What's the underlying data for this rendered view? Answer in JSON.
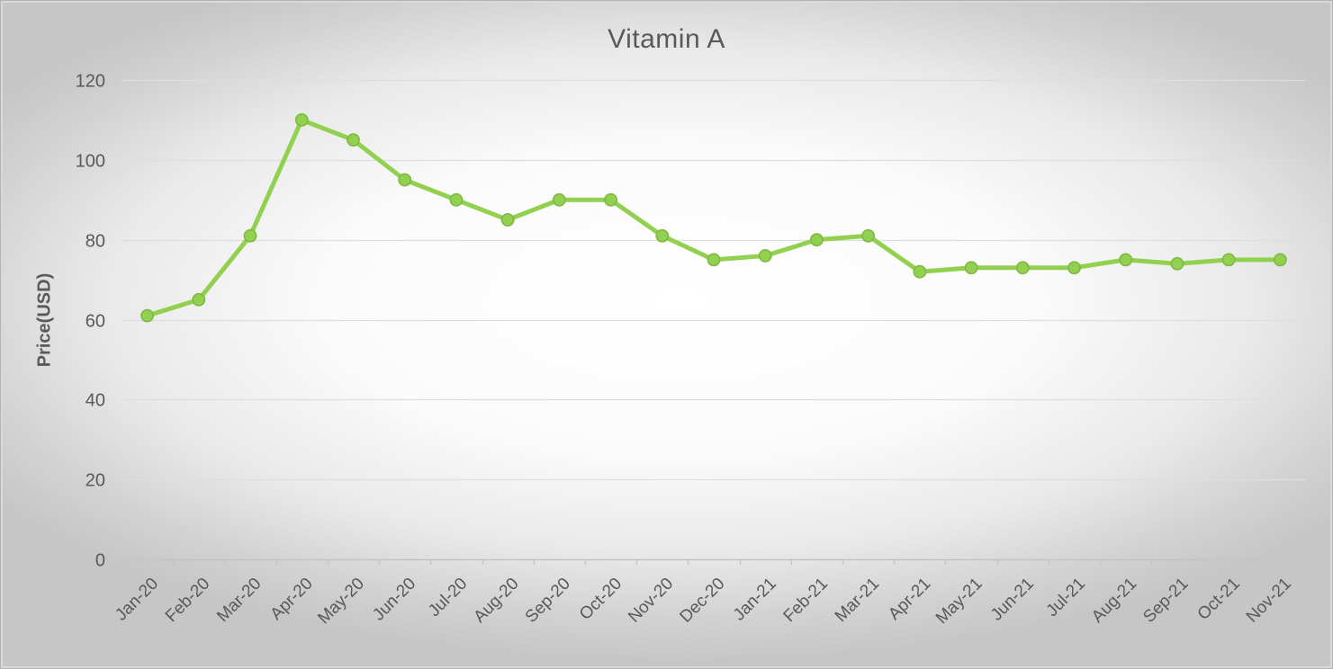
{
  "chart_data": {
    "type": "line",
    "title": "Vitamin A",
    "xlabel": "",
    "ylabel": "Price(USD)",
    "categories": [
      "Jan-20",
      "Feb-20",
      "Mar-20",
      "Apr-20",
      "May-20",
      "Jun-20",
      "Jul-20",
      "Aug-20",
      "Sep-20",
      "Oct-20",
      "Nov-20",
      "Dec-20",
      "Jan-21",
      "Feb-21",
      "Mar-21",
      "Apr-21",
      "May-21",
      "Jun-21",
      "Jul-21",
      "Aug-21",
      "Sep-21",
      "Oct-21",
      "Nov-21"
    ],
    "series": [
      {
        "name": "Vitamin A",
        "values": [
          61,
          65,
          81,
          110,
          105,
          95,
          90,
          85,
          90,
          90,
          81,
          75,
          76,
          80,
          81,
          72,
          73,
          73,
          73,
          75,
          74,
          75,
          75
        ]
      }
    ],
    "ylim": [
      0,
      120
    ],
    "yticks": [
      0,
      20,
      40,
      60,
      80,
      100,
      120
    ],
    "grid": "horizontal",
    "legend": "none",
    "marker": "circle",
    "x_label_rotation_deg": -45,
    "style": {
      "line_color": "#92d050",
      "marker_fill": "#92d050",
      "marker_stroke": "#7fb843",
      "text_color": "#595959",
      "gridline_color": "#dedede",
      "axis_line_color": "#c3c3c3",
      "background_corner_color": "#c6c6c6",
      "background_center_color": "#ffffff"
    }
  }
}
